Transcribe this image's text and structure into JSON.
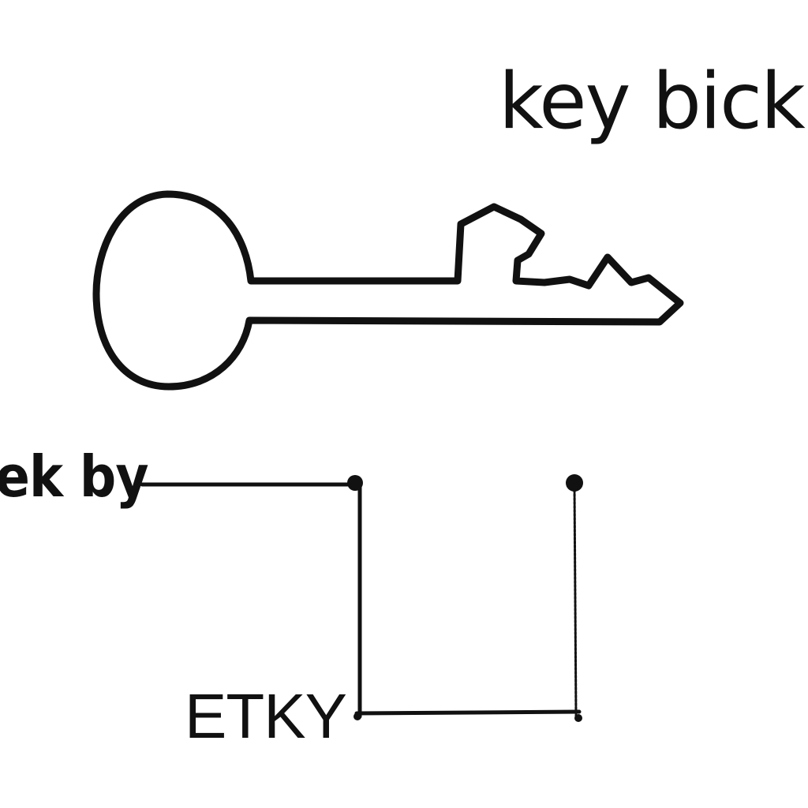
{
  "labels": {
    "title": "key bick",
    "side": "ek by",
    "bottom": "ETKY"
  },
  "colors": {
    "ink": "#111111",
    "background": "#ffffff"
  }
}
